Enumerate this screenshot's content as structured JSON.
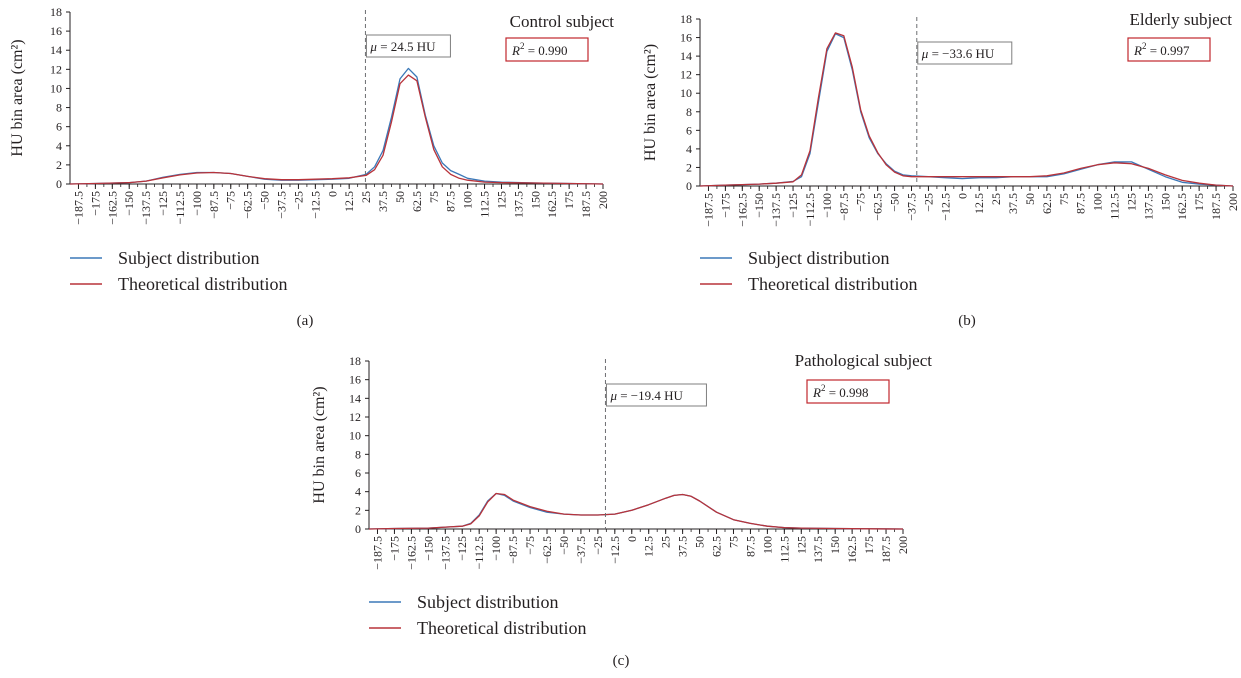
{
  "colors": {
    "subject": "#3b78b8",
    "theoretical": "#b8333a",
    "mu_box": "#7f7f7f",
    "r2_box": "#c0272d",
    "axis": "#231f20"
  },
  "x_ticks": [
    "−187.5",
    "−175",
    "−162.5",
    "−150",
    "−137.5",
    "−125",
    "−112.5",
    "−100",
    "−87.5",
    "−75",
    "−62.5",
    "−50",
    "−37.5",
    "−25",
    "−12.5",
    "0",
    "12.5",
    "25",
    "37.5",
    "50",
    "62.5",
    "75",
    "87.5",
    "100",
    "112.5",
    "125",
    "137.5",
    "150",
    "162.5",
    "175",
    "187.5",
    "200"
  ],
  "y_ticks": [
    "0",
    "2",
    "4",
    "6",
    "8",
    "10",
    "12",
    "14",
    "16",
    "18"
  ],
  "chart_data": [
    {
      "type": "line",
      "panel_label": "(a)",
      "title": "Control subject",
      "ylabel": "HU bin area (cm²)",
      "ylim": [
        0,
        18
      ],
      "xlim": [
        -193.75,
        200
      ],
      "mu": {
        "value": 24.5,
        "prefix": "μ = ",
        "value_text": "24.5 HU"
      },
      "r2": {
        "prefix": "R",
        "sup": "2",
        "value_text": " = 0.990"
      },
      "legend": [
        "Subject distribution",
        "Theoretical distribution"
      ],
      "series": [
        {
          "name": "Subject distribution",
          "x": [
            -193.75,
            -175,
            -150,
            -137.5,
            -125,
            -112.5,
            -100,
            -87.5,
            -75,
            -62.5,
            -50,
            -37.5,
            -25,
            -12.5,
            0,
            12.5,
            25,
            31.25,
            37.5,
            43.75,
            50,
            56.25,
            62.5,
            68.75,
            75,
            81.25,
            87.5,
            93.75,
            100,
            112.5,
            125,
            150,
            175,
            200
          ],
          "y": [
            0,
            0.05,
            0.15,
            0.3,
            0.7,
            1.0,
            1.2,
            1.2,
            1.1,
            0.8,
            0.5,
            0.4,
            0.4,
            0.45,
            0.5,
            0.6,
            1.0,
            1.8,
            3.5,
            7.0,
            11.0,
            12.1,
            11.2,
            7.2,
            4.0,
            2.2,
            1.4,
            1.0,
            0.6,
            0.3,
            0.2,
            0.1,
            0.05,
            0
          ]
        },
        {
          "name": "Theoretical distribution",
          "x": [
            -193.75,
            -175,
            -150,
            -137.5,
            -125,
            -112.5,
            -100,
            -87.5,
            -75,
            -62.5,
            -50,
            -37.5,
            -25,
            -12.5,
            0,
            12.5,
            25,
            31.25,
            37.5,
            43.75,
            50,
            56.25,
            62.5,
            68.75,
            75,
            81.25,
            87.5,
            93.75,
            100,
            112.5,
            125,
            150,
            175,
            200
          ],
          "y": [
            0,
            0.05,
            0.15,
            0.3,
            0.65,
            0.95,
            1.15,
            1.2,
            1.1,
            0.8,
            0.55,
            0.45,
            0.45,
            0.5,
            0.55,
            0.65,
            0.9,
            1.5,
            3.0,
            6.5,
            10.5,
            11.4,
            10.8,
            7.0,
            3.6,
            1.8,
            1.0,
            0.6,
            0.4,
            0.2,
            0.15,
            0.1,
            0.05,
            0
          ]
        }
      ]
    },
    {
      "type": "line",
      "panel_label": "(b)",
      "title": "Elderly subject",
      "ylabel": "HU bin area (cm²)",
      "ylim": [
        0,
        18
      ],
      "xlim": [
        -193.75,
        200
      ],
      "mu": {
        "value": -33.6,
        "prefix": "μ = ",
        "value_text": "−33.6 HU"
      },
      "r2": {
        "prefix": "R",
        "sup": "2",
        "value_text": " = 0.997"
      },
      "legend": [
        "Subject distribution",
        "Theoretical distribution"
      ],
      "series": [
        {
          "name": "Subject distribution",
          "x": [
            -193.75,
            -175,
            -150,
            -137.5,
            -125,
            -118.75,
            -112.5,
            -106.25,
            -100,
            -93.75,
            -87.5,
            -81.25,
            -75,
            -68.75,
            -62.5,
            -56.25,
            -50,
            -43.75,
            -37.5,
            -25,
            -12.5,
            0,
            12.5,
            25,
            37.5,
            50,
            62.5,
            75,
            87.5,
            100,
            112.5,
            125,
            137.5,
            150,
            162.5,
            175,
            187.5,
            200
          ],
          "y": [
            0,
            0.1,
            0.2,
            0.3,
            0.5,
            1.0,
            3.5,
            9.0,
            14.5,
            16.4,
            16.0,
            12.5,
            8.0,
            5.2,
            3.5,
            2.4,
            1.6,
            1.2,
            1.1,
            1.0,
            0.9,
            0.8,
            0.9,
            0.9,
            1.0,
            1.0,
            1.0,
            1.3,
            1.8,
            2.3,
            2.6,
            2.6,
            1.8,
            1.0,
            0.4,
            0.2,
            0.1,
            0
          ]
        },
        {
          "name": "Theoretical distribution",
          "x": [
            -193.75,
            -175,
            -150,
            -137.5,
            -125,
            -118.75,
            -112.5,
            -106.25,
            -100,
            -93.75,
            -87.5,
            -81.25,
            -75,
            -68.75,
            -62.5,
            -56.25,
            -50,
            -43.75,
            -37.5,
            -25,
            -12.5,
            0,
            12.5,
            25,
            37.5,
            50,
            62.5,
            75,
            87.5,
            100,
            112.5,
            125,
            137.5,
            150,
            162.5,
            175,
            187.5,
            200
          ],
          "y": [
            0,
            0.1,
            0.2,
            0.3,
            0.45,
            1.2,
            3.8,
            9.5,
            14.8,
            16.5,
            16.2,
            12.8,
            8.2,
            5.4,
            3.6,
            2.3,
            1.5,
            1.1,
            1.0,
            1.0,
            1.0,
            1.0,
            1.0,
            1.0,
            1.0,
            1.0,
            1.1,
            1.4,
            1.9,
            2.3,
            2.5,
            2.4,
            1.9,
            1.2,
            0.6,
            0.3,
            0.1,
            0
          ]
        }
      ]
    },
    {
      "type": "line",
      "panel_label": "(c)",
      "title": "Pathological subject",
      "ylabel": "HU bin area (cm²)",
      "ylim": [
        0,
        18
      ],
      "xlim": [
        -193.75,
        200
      ],
      "mu": {
        "value": -19.4,
        "prefix": "μ = ",
        "value_text": "−19.4 HU"
      },
      "r2": {
        "prefix": "R",
        "sup": "2",
        "value_text": " = 0.998"
      },
      "legend": [
        "Subject distribution",
        "Theoretical distribution"
      ],
      "series": [
        {
          "name": "Subject distribution",
          "x": [
            -193.75,
            -175,
            -150,
            -137.5,
            -125,
            -118.75,
            -112.5,
            -106.25,
            -100,
            -93.75,
            -87.5,
            -75,
            -62.5,
            -50,
            -37.5,
            -25,
            -12.5,
            0,
            12.5,
            25,
            31.25,
            37.5,
            43.75,
            50,
            62.5,
            75,
            87.5,
            100,
            112.5,
            125,
            150,
            175,
            200
          ],
          "y": [
            0,
            0.05,
            0.1,
            0.2,
            0.3,
            0.6,
            1.5,
            3.0,
            3.8,
            3.6,
            3.0,
            2.3,
            1.8,
            1.6,
            1.5,
            1.5,
            1.6,
            2.0,
            2.6,
            3.3,
            3.6,
            3.7,
            3.5,
            3.0,
            1.8,
            1.0,
            0.6,
            0.3,
            0.15,
            0.1,
            0.05,
            0.02,
            0
          ]
        },
        {
          "name": "Theoretical distribution",
          "x": [
            -193.75,
            -175,
            -150,
            -137.5,
            -125,
            -118.75,
            -112.5,
            -106.25,
            -100,
            -93.75,
            -87.5,
            -75,
            -62.5,
            -50,
            -37.5,
            -25,
            -12.5,
            0,
            12.5,
            25,
            31.25,
            37.5,
            43.75,
            50,
            62.5,
            75,
            87.5,
            100,
            112.5,
            125,
            150,
            175,
            200
          ],
          "y": [
            0,
            0.05,
            0.1,
            0.2,
            0.3,
            0.55,
            1.4,
            2.9,
            3.8,
            3.7,
            3.1,
            2.4,
            1.9,
            1.6,
            1.5,
            1.5,
            1.6,
            2.0,
            2.6,
            3.3,
            3.6,
            3.7,
            3.5,
            3.0,
            1.8,
            1.0,
            0.6,
            0.3,
            0.15,
            0.1,
            0.05,
            0.02,
            0
          ]
        }
      ]
    }
  ]
}
